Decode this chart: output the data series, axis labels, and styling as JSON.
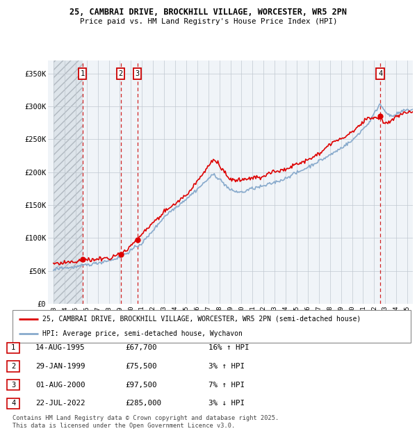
{
  "title_line1": "25, CAMBRAI DRIVE, BROCKHILL VILLAGE, WORCESTER, WR5 2PN",
  "title_line2": "Price paid vs. HM Land Registry's House Price Index (HPI)",
  "legend_label1": "25, CAMBRAI DRIVE, BROCKHILL VILLAGE, WORCESTER, WR5 2PN (semi-detached house)",
  "legend_label2": "HPI: Average price, semi-detached house, Wychavon",
  "footer1": "Contains HM Land Registry data © Crown copyright and database right 2025.",
  "footer2": "This data is licensed under the Open Government Licence v3.0.",
  "transactions": [
    {
      "num": 1,
      "date": "14-AUG-1995",
      "year": 1995.62,
      "price": 67700,
      "pct": "16%",
      "dir": "↑"
    },
    {
      "num": 2,
      "date": "29-JAN-1999",
      "year": 1999.08,
      "price": 75500,
      "pct": "3%",
      "dir": "↑"
    },
    {
      "num": 3,
      "date": "01-AUG-2000",
      "year": 2000.58,
      "price": 97500,
      "pct": "7%",
      "dir": "↑"
    },
    {
      "num": 4,
      "date": "22-JUL-2022",
      "year": 2022.55,
      "price": 285000,
      "pct": "3%",
      "dir": "↓"
    }
  ],
  "hatch_start": 1993.0,
  "hatch_end": 1995.62,
  "xlim": [
    1992.5,
    2025.5
  ],
  "ylim": [
    0,
    370000
  ],
  "yticks": [
    0,
    50000,
    100000,
    150000,
    200000,
    250000,
    300000,
    350000
  ],
  "ytick_labels": [
    "£0",
    "£50K",
    "£100K",
    "£150K",
    "£200K",
    "£250K",
    "£300K",
    "£350K"
  ],
  "price_line_color": "#dd0000",
  "hpi_line_color": "#88aacc",
  "vline_color": "#cc0000",
  "box_color": "#cc0000",
  "background_color": "#f0f4f8",
  "grid_color": "#c0c8d0"
}
